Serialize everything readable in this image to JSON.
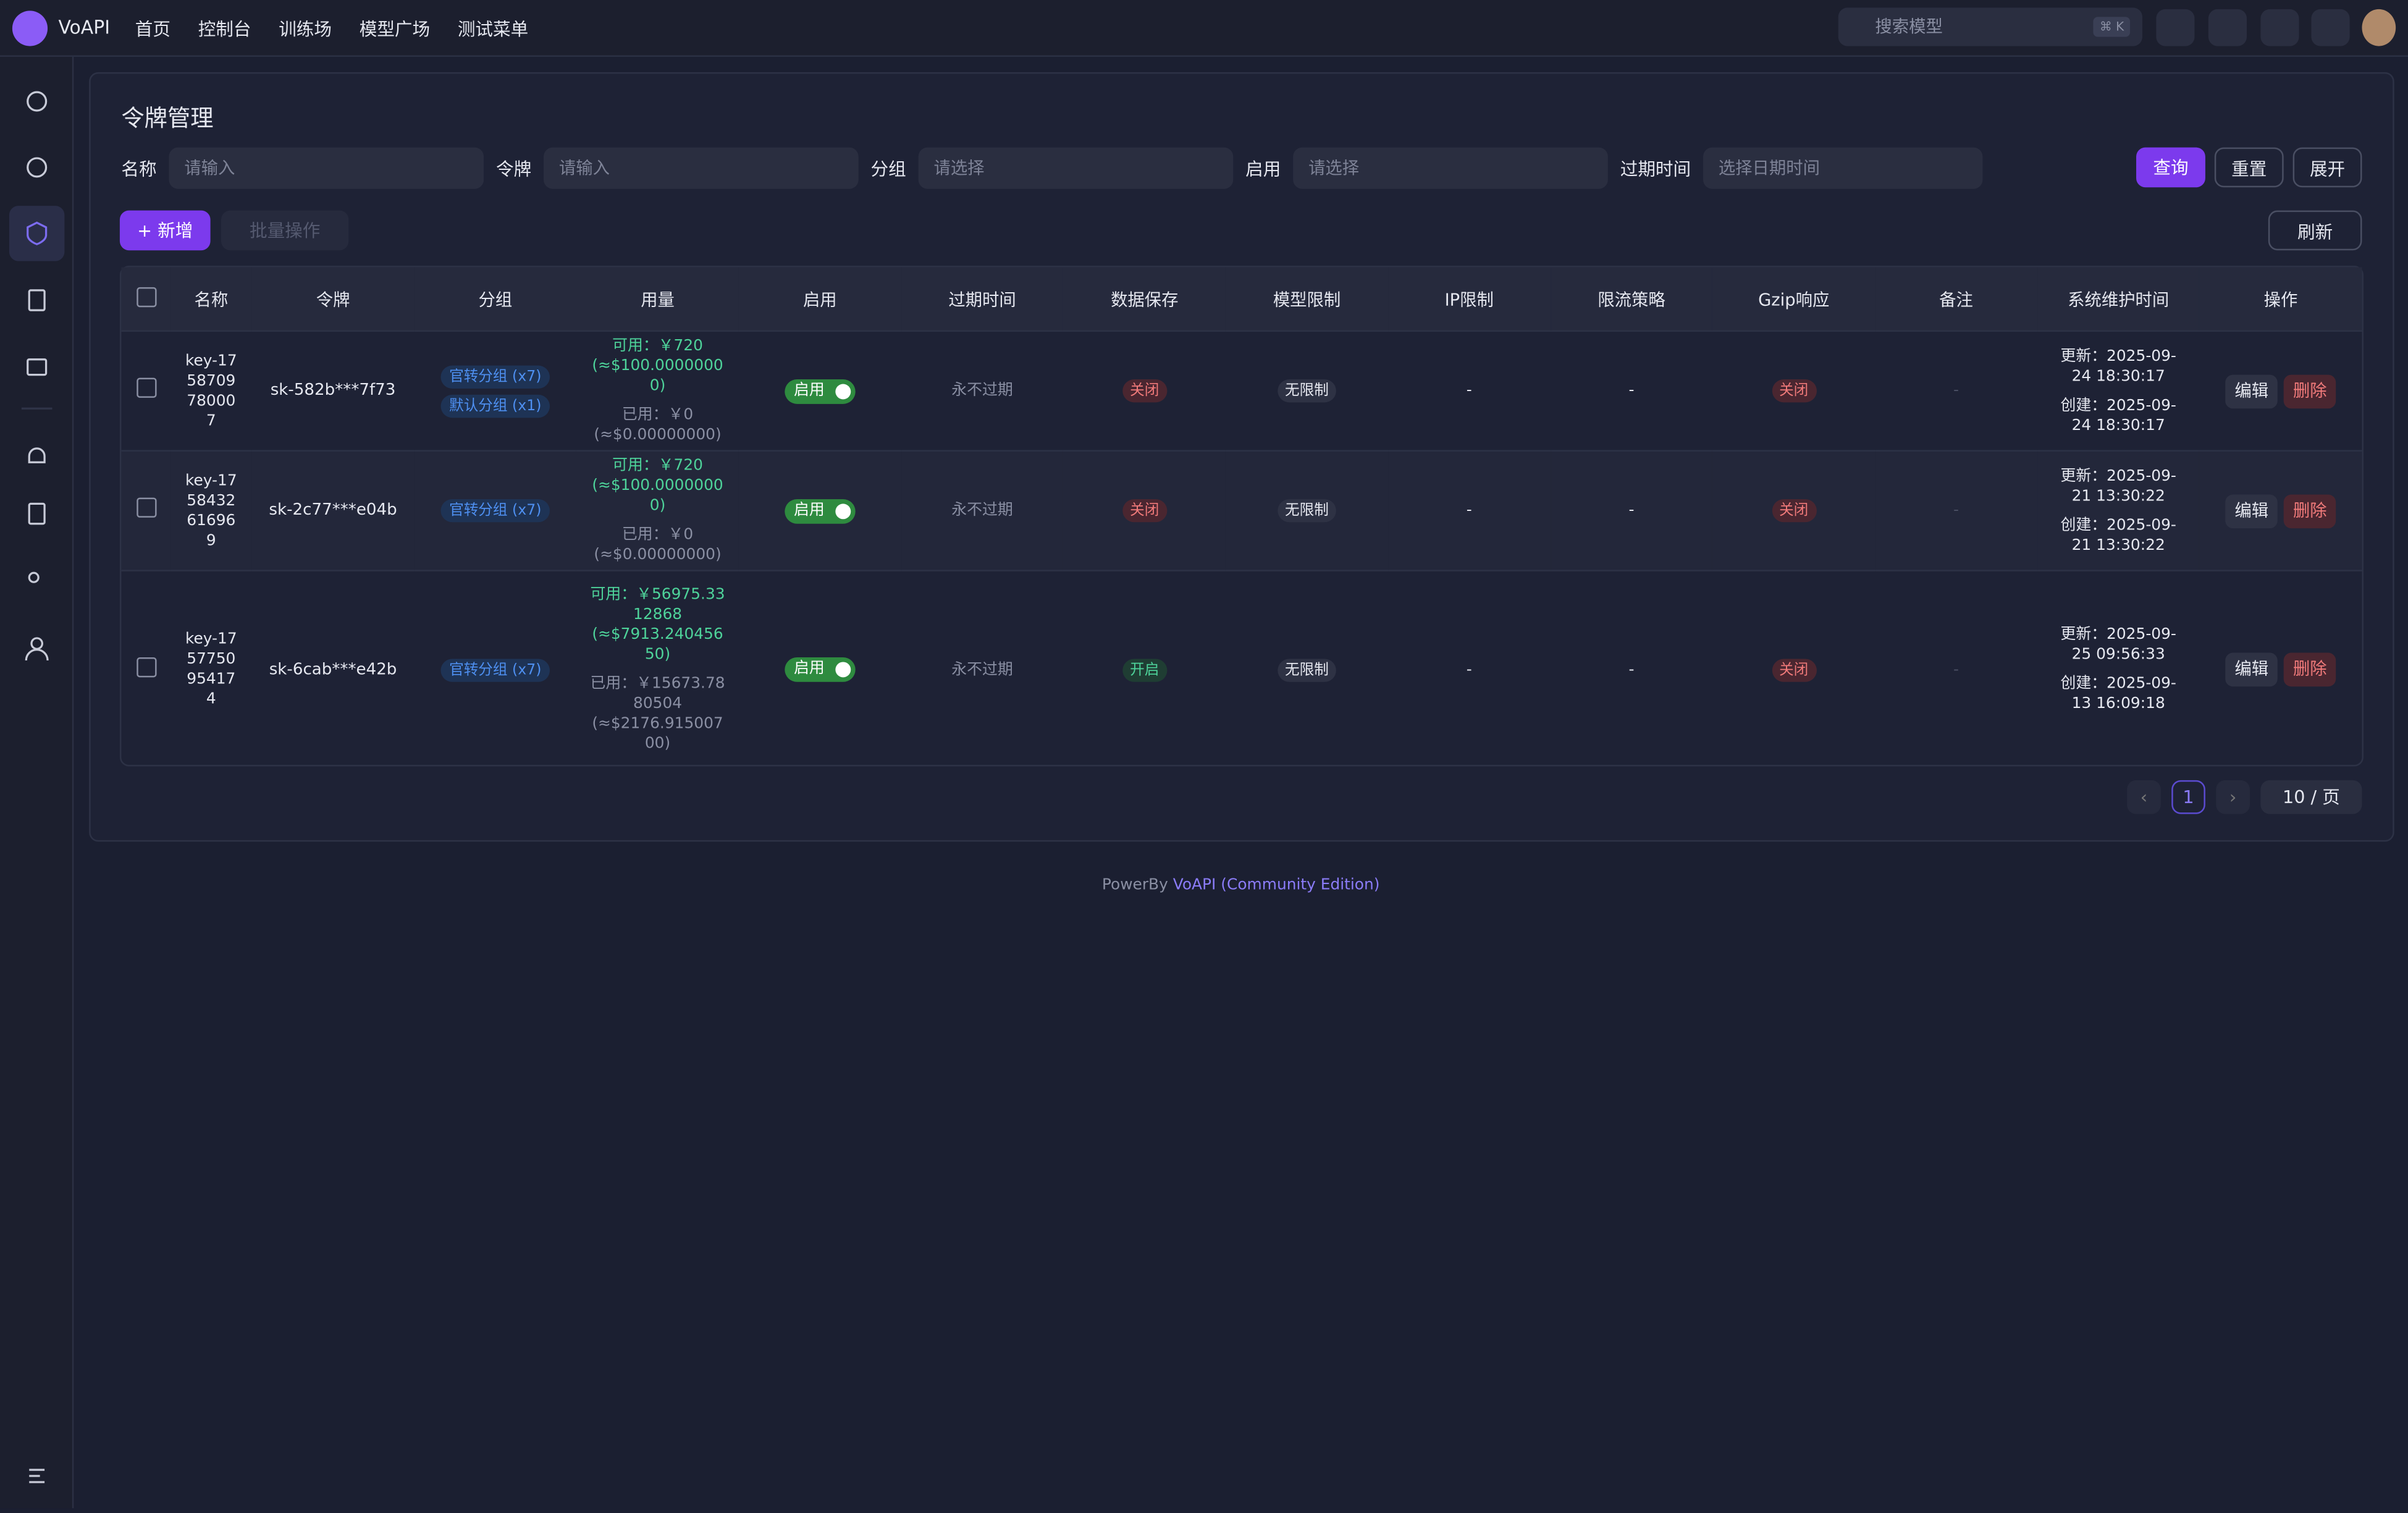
{
  "nav": {
    "brand": "VoAPI",
    "items": [
      "首页",
      "控制台",
      "训练场",
      "模型广场",
      "测试菜单"
    ],
    "search_placeholder": "搜索模型",
    "search_shortcut": "⌘ K"
  },
  "page": {
    "title": "令牌管理"
  },
  "filters": [
    {
      "label": "名称",
      "placeholder": "请输入"
    },
    {
      "label": "令牌",
      "placeholder": "请输入"
    },
    {
      "label": "分组",
      "placeholder": "请选择"
    },
    {
      "label": "启用",
      "placeholder": "请选择"
    },
    {
      "label": "过期时间",
      "placeholder": "选择日期时间"
    }
  ],
  "filter_buttons": [
    "查询",
    "重置",
    "展开"
  ],
  "toolbar": {
    "add": "新增",
    "batch": "批量操作",
    "refresh": "刷新"
  },
  "table": {
    "headers": [
      "名称",
      "令牌",
      "分组",
      "用量",
      "启用",
      "过期时间",
      "数据保存",
      "模型限制",
      "IP限制",
      "限流策略",
      "Gzip响应",
      "备注",
      "系统维护时间",
      "操作"
    ],
    "rows": [
      {
        "name": "key-1758709780007",
        "token": "sk-582b***7f73",
        "groups": [
          "官转分组 (x7)",
          "默认分组 (x1)"
        ],
        "available": "可用：￥720",
        "available_usd": "(≈$100.00000000)",
        "used": "已用：￥0",
        "used_usd": "(≈$0.00000000)",
        "enabled": "启用",
        "expiry": "永不过期",
        "data_save": "关闭",
        "model_limit": "无限制",
        "ip_limit": "-",
        "rate_limit": "-",
        "gzip": "关闭",
        "note": "-",
        "updated": "更新：2025-09-24 18:30:17",
        "created": "创建：2025-09-24 18:30:17",
        "edit": "编辑",
        "delete": "删除"
      },
      {
        "name": "key-1758432616969",
        "token": "sk-2c77***e04b",
        "groups": [
          "官转分组 (x7)"
        ],
        "available": "可用：￥720",
        "available_usd": "(≈$100.00000000)",
        "used": "已用：￥0",
        "used_usd": "(≈$0.00000000)",
        "enabled": "启用",
        "expiry": "永不过期",
        "data_save": "关闭",
        "model_limit": "无限制",
        "ip_limit": "-",
        "rate_limit": "-",
        "gzip": "关闭",
        "note": "-",
        "updated": "更新：2025-09-21 13:30:22",
        "created": "创建：2025-09-21 13:30:22",
        "edit": "编辑",
        "delete": "删除"
      },
      {
        "name": "key-1757750954174",
        "token": "sk-6cab***e42b",
        "groups": [
          "官转分组 (x7)"
        ],
        "available": "可用：￥56975.3312868",
        "available_usd": "(≈$7913.24045650)",
        "used": "已用：￥15673.7880504",
        "used_usd": "(≈$2176.91500700)",
        "enabled": "启用",
        "expiry": "永不过期",
        "data_save": "开启",
        "model_limit": "无限制",
        "ip_limit": "-",
        "rate_limit": "-",
        "gzip": "关闭",
        "note": "-",
        "updated": "更新：2025-09-25 09:56:33",
        "created": "创建：2025-09-13 16:09:18",
        "edit": "编辑",
        "delete": "删除"
      }
    ]
  },
  "pagination": {
    "current": "1",
    "page_size": "10 / 页"
  },
  "footer": {
    "prefix": "PowerBy",
    "link": "VoAPI (Community Edition)"
  }
}
